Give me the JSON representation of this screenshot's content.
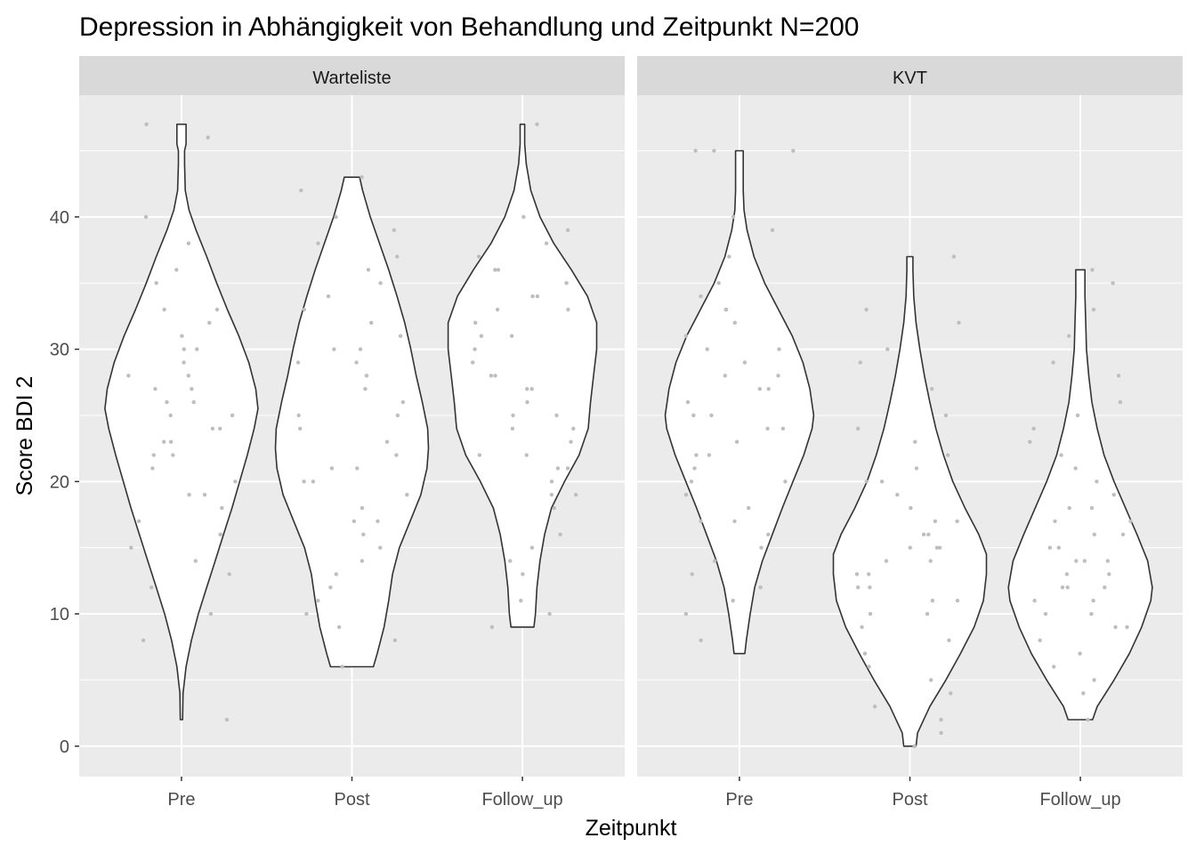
{
  "chart_data": {
    "type": "violin",
    "title": "Depression in Abhängigkeit von Behandlung und Zeitpunkt N=200",
    "xlabel": "Zeitpunkt",
    "ylabel": "Score BDI 2",
    "ylim": [
      -2.3,
      49.2
    ],
    "yticks": [
      0,
      10,
      20,
      30,
      40
    ],
    "categories": [
      "Pre",
      "Post",
      "Follow_up"
    ],
    "grid": true,
    "colors": {
      "panel_bg": "#EBEBEB",
      "strip_bg": "#D9D9D9",
      "grid": "#FFFFFF",
      "violin_fill": "#FFFFFF",
      "violin_line": "#333333",
      "points": "#BEBEBE"
    },
    "panels": [
      {
        "name": "Warteliste",
        "violins": [
          {
            "category": "Pre",
            "min": 2,
            "max": 47,
            "density": [
              [
                2,
                0.015
              ],
              [
                4,
                0.02
              ],
              [
                6,
                0.06
              ],
              [
                8,
                0.13
              ],
              [
                10,
                0.22
              ],
              [
                12,
                0.33
              ],
              [
                14,
                0.44
              ],
              [
                16,
                0.55
              ],
              [
                18,
                0.66
              ],
              [
                20,
                0.76
              ],
              [
                22,
                0.86
              ],
              [
                24,
                0.95
              ],
              [
                25.5,
                1.0
              ],
              [
                27,
                0.97
              ],
              [
                29,
                0.88
              ],
              [
                31,
                0.75
              ],
              [
                33,
                0.6
              ],
              [
                35,
                0.46
              ],
              [
                37,
                0.33
              ],
              [
                39,
                0.19
              ],
              [
                40.5,
                0.1
              ],
              [
                42,
                0.05
              ],
              [
                44,
                0.04
              ],
              [
                45,
                0.04
              ],
              [
                45.5,
                0.06
              ],
              [
                47,
                0.06
              ]
            ]
          },
          {
            "category": "Post",
            "min": 6,
            "max": 43,
            "density": [
              [
                6,
                0.28
              ],
              [
                7,
                0.33
              ],
              [
                9,
                0.42
              ],
              [
                11,
                0.48
              ],
              [
                13,
                0.53
              ],
              [
                15,
                0.62
              ],
              [
                17,
                0.76
              ],
              [
                19,
                0.9
              ],
              [
                21,
                0.98
              ],
              [
                22.5,
                1.0
              ],
              [
                24,
                0.99
              ],
              [
                26,
                0.92
              ],
              [
                28,
                0.84
              ],
              [
                30,
                0.77
              ],
              [
                32,
                0.69
              ],
              [
                34,
                0.59
              ],
              [
                36,
                0.48
              ],
              [
                38,
                0.36
              ],
              [
                40,
                0.24
              ],
              [
                42,
                0.14
              ],
              [
                43,
                0.1
              ]
            ]
          },
          {
            "category": "Follow_up",
            "min": 9,
            "max": 47,
            "density": [
              [
                9,
                0.15
              ],
              [
                10,
                0.17
              ],
              [
                12,
                0.19
              ],
              [
                14,
                0.23
              ],
              [
                16,
                0.29
              ],
              [
                18,
                0.38
              ],
              [
                20,
                0.55
              ],
              [
                22,
                0.74
              ],
              [
                24,
                0.86
              ],
              [
                26,
                0.89
              ],
              [
                28,
                0.93
              ],
              [
                30,
                0.97
              ],
              [
                32,
                0.97
              ],
              [
                34,
                0.85
              ],
              [
                36,
                0.64
              ],
              [
                38,
                0.41
              ],
              [
                40,
                0.23
              ],
              [
                42,
                0.11
              ],
              [
                44,
                0.05
              ],
              [
                45.5,
                0.03
              ],
              [
                47,
                0.03
              ]
            ]
          }
        ],
        "points": [
          {
            "category": "Pre",
            "values": [
              47,
              46,
              38,
              36,
              35,
              33,
              32,
              31,
              30,
              29,
              28,
              27,
              26,
              25,
              24,
              23,
              22,
              21,
              20,
              19,
              18,
              16,
              15,
              14,
              13,
              12,
              10,
              8,
              2,
              40,
              33,
              28,
              26,
              23,
              19,
              17,
              30,
              25,
              22,
              27,
              24,
              16
            ]
          },
          {
            "category": "Post",
            "values": [
              43,
              42,
              40,
              39,
              38,
              37,
              36,
              35,
              33,
              32,
              31,
              30,
              29,
              28,
              27,
              26,
              25,
              24,
              23,
              22,
              21,
              20,
              19,
              18,
              17,
              16,
              15,
              14,
              12,
              11,
              10,
              9,
              8,
              6,
              34,
              29,
              25,
              21,
              17,
              13,
              30,
              20
            ]
          },
          {
            "category": "Follow_up",
            "values": [
              47,
              40,
              39,
              38,
              37,
              36,
              35,
              34,
              33,
              32,
              31,
              30,
              29,
              28,
              27,
              26,
              25,
              24,
              23,
              22,
              21,
              20,
              19,
              18,
              16,
              15,
              14,
              13,
              11,
              10,
              9,
              34,
              31,
              28,
              25,
              22,
              19,
              36,
              33,
              27,
              24,
              21
            ]
          }
        ]
      },
      {
        "name": "KVT",
        "violins": [
          {
            "category": "Pre",
            "min": 7,
            "max": 45,
            "density": [
              [
                7,
                0.07
              ],
              [
                8,
                0.09
              ],
              [
                10,
                0.14
              ],
              [
                12,
                0.2
              ],
              [
                14,
                0.3
              ],
              [
                16,
                0.43
              ],
              [
                18,
                0.56
              ],
              [
                20,
                0.7
              ],
              [
                22,
                0.84
              ],
              [
                24,
                0.95
              ],
              [
                25,
                0.97
              ],
              [
                27,
                0.92
              ],
              [
                29,
                0.83
              ],
              [
                31,
                0.69
              ],
              [
                33,
                0.51
              ],
              [
                35,
                0.33
              ],
              [
                37,
                0.19
              ],
              [
                39,
                0.1
              ],
              [
                40.5,
                0.06
              ],
              [
                42,
                0.05
              ],
              [
                44,
                0.05
              ],
              [
                45,
                0.05
              ]
            ]
          },
          {
            "category": "Post",
            "min": 0,
            "max": 37,
            "density": [
              [
                0,
                0.08
              ],
              [
                1,
                0.1
              ],
              [
                3,
                0.26
              ],
              [
                5,
                0.47
              ],
              [
                7,
                0.66
              ],
              [
                9,
                0.84
              ],
              [
                11,
                0.96
              ],
              [
                13,
                1.0
              ],
              [
                14.5,
                1.0
              ],
              [
                16,
                0.9
              ],
              [
                18,
                0.72
              ],
              [
                20,
                0.56
              ],
              [
                22,
                0.44
              ],
              [
                24,
                0.34
              ],
              [
                26,
                0.26
              ],
              [
                28,
                0.19
              ],
              [
                30,
                0.13
              ],
              [
                32,
                0.08
              ],
              [
                34,
                0.05
              ],
              [
                36,
                0.04
              ],
              [
                37,
                0.04
              ]
            ]
          },
          {
            "category": "Follow_up",
            "min": 2,
            "max": 36,
            "density": [
              [
                2,
                0.16
              ],
              [
                3,
                0.22
              ],
              [
                5,
                0.44
              ],
              [
                7,
                0.64
              ],
              [
                9,
                0.8
              ],
              [
                11,
                0.92
              ],
              [
                12,
                0.94
              ],
              [
                14,
                0.88
              ],
              [
                16,
                0.74
              ],
              [
                18,
                0.59
              ],
              [
                20,
                0.44
              ],
              [
                22,
                0.31
              ],
              [
                24,
                0.22
              ],
              [
                26,
                0.15
              ],
              [
                28,
                0.11
              ],
              [
                30,
                0.08
              ],
              [
                32,
                0.07
              ],
              [
                34,
                0.06
              ],
              [
                36,
                0.06
              ]
            ]
          }
        ],
        "points": [
          {
            "category": "Pre",
            "values": [
              45,
              45,
              45,
              40,
              39,
              37,
              35,
              34,
              33,
              32,
              31,
              30,
              29,
              28,
              27,
              26,
              25,
              24,
              23,
              22,
              21,
              20,
              19,
              18,
              17,
              16,
              15,
              14,
              13,
              12,
              11,
              10,
              8,
              33,
              30,
              28,
              25,
              22,
              20,
              17,
              27,
              24
            ]
          },
          {
            "category": "Post",
            "values": [
              37,
              33,
              32,
              30,
              29,
              27,
              25,
              24,
              23,
              22,
              21,
              20,
              19,
              18,
              17,
              16,
              15,
              14,
              13,
              12,
              11,
              10,
              9,
              8,
              7,
              6,
              5,
              4,
              3,
              2,
              1,
              0,
              20,
              17,
              15,
              14,
              12,
              10,
              16,
              13,
              11,
              15
            ]
          },
          {
            "category": "Follow_up",
            "values": [
              36,
              35,
              33,
              31,
              29,
              28,
              26,
              25,
              24,
              23,
              22,
              21,
              20,
              19,
              18,
              17,
              16,
              15,
              14,
              13,
              12,
              11,
              10,
              9,
              8,
              7,
              6,
              5,
              4,
              2,
              18,
              16,
              14,
              13,
              12,
              10,
              15,
              12,
              9,
              11,
              17,
              14
            ]
          }
        ]
      }
    ]
  }
}
